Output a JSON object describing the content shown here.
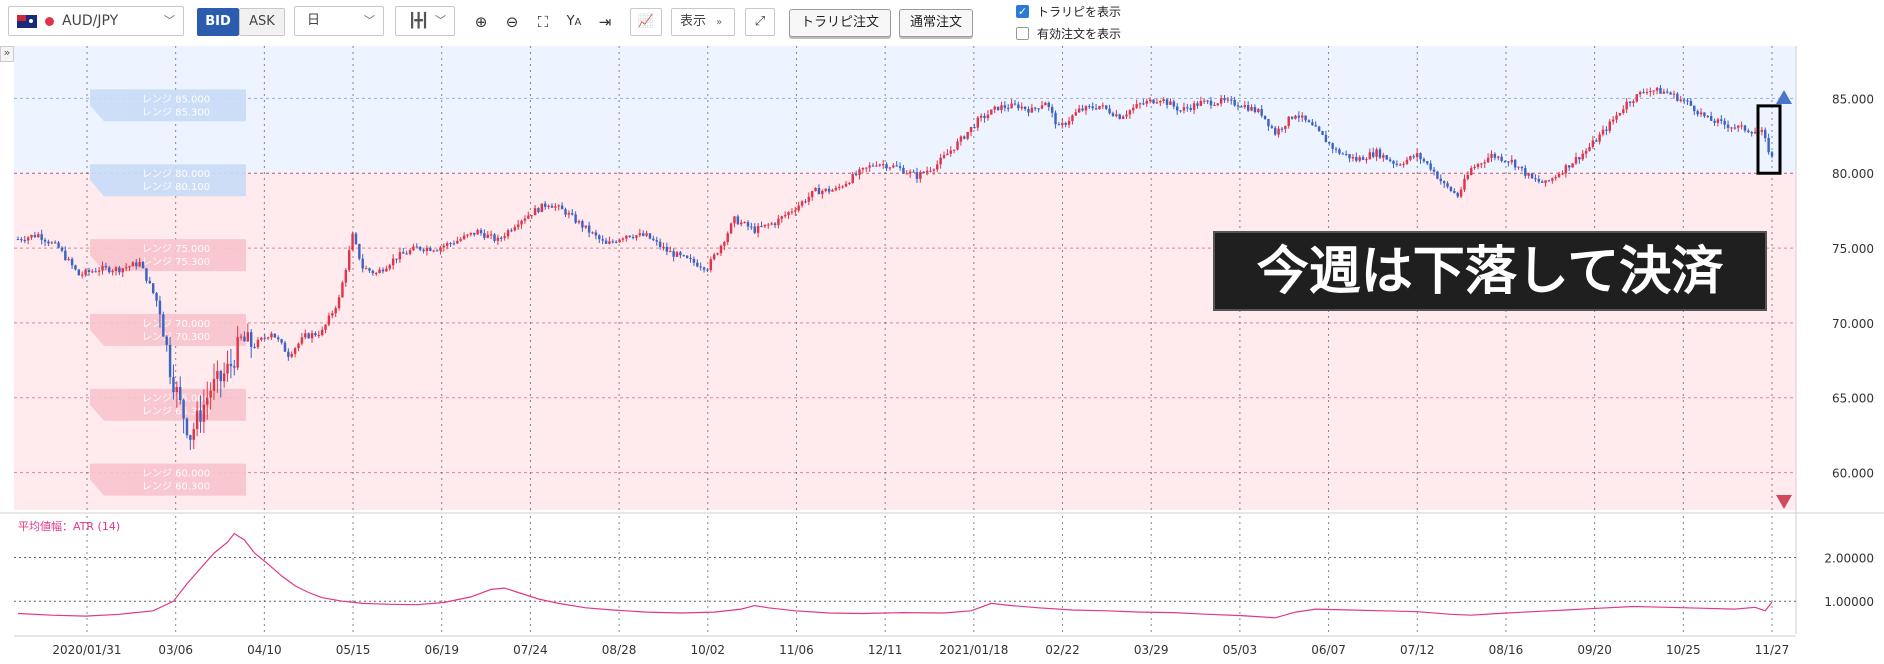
{
  "toolbar": {
    "symbol": "AUD/JPY",
    "flag_icon": "australia-flag-icon",
    "bid_label": "BID",
    "ask_label": "ASK",
    "timeframe": "日",
    "display_label": "表示",
    "trarepi_order_label": "トラリピ注文",
    "normal_order_label": "通常注文",
    "show_trarepi_label": "トラリピを表示",
    "show_trarepi_checked": true,
    "show_active_orders_label": "有効注文を表示",
    "show_active_orders_checked": false
  },
  "annotation": {
    "text": "今週は下落して決済"
  },
  "colors": {
    "up_candle": "#e0344a",
    "down_candle": "#3b63c4",
    "sell_zone": "#eef4ff",
    "buy_zone": "#ffeaee",
    "atr_line": "#e0388b",
    "bid_active": "#2b5cad"
  },
  "chart_data": [
    {
      "type": "candlestick",
      "symbol": "AUD/JPY",
      "timeframe": "日",
      "y_ticks": [
        "85.000",
        "80.000",
        "75.000",
        "70.000",
        "65.000",
        "60.000"
      ],
      "ylim": [
        57.5,
        88.5
      ],
      "x_ticks": [
        "2020/01/31",
        "03/06",
        "04/10",
        "05/15",
        "06/19",
        "07/24",
        "08/28",
        "10/02",
        "11/06",
        "12/11",
        "2021/01/18",
        "02/22",
        "03/29",
        "05/03",
        "06/07",
        "07/12",
        "08/16",
        "09/20",
        "10/25",
        "11/27"
      ],
      "range_orders": [
        {
          "side": "sell",
          "labels": [
            "レンジ 85.000",
            "レンジ 85.300"
          ]
        },
        {
          "side": "sell",
          "labels": [
            "レンジ 80.000",
            "レンジ 80.100"
          ]
        },
        {
          "side": "buy",
          "labels": [
            "レンジ 75.000",
            "レンジ 75.300"
          ]
        },
        {
          "side": "buy",
          "labels": [
            "レンジ 70.000",
            "レンジ 70.300"
          ]
        },
        {
          "side": "buy",
          "labels": [
            "レンジ 65.000",
            "レンジ 65.300"
          ]
        },
        {
          "side": "buy",
          "labels": [
            "レンジ 60.000",
            "レンジ 60.300"
          ]
        }
      ],
      "zone_boundary": 80.0,
      "close_path": [
        [
          0,
          75.6
        ],
        [
          6,
          75.9
        ],
        [
          12,
          75.0
        ],
        [
          18,
          73.2
        ],
        [
          24,
          73.6
        ],
        [
          30,
          73.6
        ],
        [
          36,
          74.0
        ],
        [
          42,
          71.0
        ],
        [
          45,
          67.0
        ],
        [
          48,
          64.5
        ],
        [
          51,
          62.5
        ],
        [
          54,
          64.0
        ],
        [
          57,
          65.6
        ],
        [
          60,
          66.2
        ],
        [
          63,
          67.2
        ],
        [
          66,
          68.8
        ],
        [
          70,
          68.5
        ],
        [
          75,
          69.4
        ],
        [
          80,
          67.9
        ],
        [
          85,
          69.1
        ],
        [
          90,
          69.4
        ],
        [
          95,
          71.6
        ],
        [
          99,
          75.8
        ],
        [
          102,
          73.7
        ],
        [
          106,
          73.3
        ],
        [
          112,
          74.4
        ],
        [
          118,
          75.0
        ],
        [
          124,
          75.0
        ],
        [
          130,
          75.5
        ],
        [
          136,
          76.1
        ],
        [
          142,
          75.5
        ],
        [
          148,
          76.8
        ],
        [
          153,
          77.5
        ],
        [
          157,
          78.0
        ],
        [
          162,
          77.4
        ],
        [
          168,
          76.3
        ],
        [
          174,
          75.2
        ],
        [
          180,
          75.9
        ],
        [
          186,
          75.8
        ],
        [
          192,
          74.8
        ],
        [
          198,
          74.2
        ],
        [
          204,
          73.7
        ],
        [
          208,
          75.2
        ],
        [
          212,
          76.9
        ],
        [
          218,
          76.2
        ],
        [
          224,
          76.7
        ],
        [
          230,
          77.7
        ],
        [
          236,
          78.8
        ],
        [
          242,
          78.9
        ],
        [
          248,
          79.9
        ],
        [
          254,
          80.7
        ],
        [
          260,
          80.4
        ],
        [
          266,
          79.8
        ],
        [
          272,
          80.6
        ],
        [
          278,
          82.0
        ],
        [
          284,
          83.5
        ],
        [
          290,
          84.4
        ],
        [
          296,
          84.5
        ],
        [
          300,
          84.2
        ],
        [
          304,
          84.8
        ],
        [
          308,
          83.0
        ],
        [
          314,
          84.2
        ],
        [
          320,
          84.5
        ],
        [
          326,
          83.8
        ],
        [
          332,
          84.6
        ],
        [
          338,
          85.0
        ],
        [
          344,
          84.2
        ],
        [
          350,
          84.7
        ],
        [
          356,
          84.8
        ],
        [
          362,
          84.6
        ],
        [
          368,
          84.0
        ],
        [
          372,
          82.7
        ],
        [
          378,
          84.0
        ],
        [
          384,
          82.9
        ],
        [
          390,
          81.5
        ],
        [
          396,
          80.9
        ],
        [
          402,
          81.4
        ],
        [
          408,
          80.6
        ],
        [
          414,
          81.2
        ],
        [
          418,
          80.4
        ],
        [
          422,
          79.2
        ],
        [
          426,
          78.5
        ],
        [
          430,
          80.3
        ],
        [
          436,
          81.2
        ],
        [
          442,
          80.8
        ],
        [
          448,
          79.6
        ],
        [
          452,
          79.3
        ],
        [
          458,
          80.4
        ],
        [
          464,
          81.5
        ],
        [
          470,
          83.0
        ],
        [
          476,
          84.7
        ],
        [
          482,
          85.6
        ],
        [
          488,
          85.4
        ],
        [
          494,
          84.7
        ],
        [
          500,
          83.6
        ],
        [
          506,
          83.2
        ],
        [
          512,
          82.9
        ],
        [
          516,
          82.7
        ],
        [
          519,
          81.0
        ]
      ],
      "n_bars": 520
    },
    {
      "type": "line",
      "title": "平均値幅：ATR (14)",
      "y_ticks": [
        "2.00000",
        "1.00000"
      ],
      "ylim": [
        0.25,
        2.95
      ],
      "series": [
        {
          "points": [
            [
              0,
              0.72
            ],
            [
              10,
              0.68
            ],
            [
              20,
              0.66
            ],
            [
              30,
              0.7
            ],
            [
              40,
              0.78
            ],
            [
              46,
              1.0
            ],
            [
              50,
              1.4
            ],
            [
              54,
              1.75
            ],
            [
              58,
              2.1
            ],
            [
              62,
              2.35
            ],
            [
              64,
              2.55
            ],
            [
              67,
              2.4
            ],
            [
              70,
              2.1
            ],
            [
              74,
              1.85
            ],
            [
              78,
              1.58
            ],
            [
              82,
              1.35
            ],
            [
              86,
              1.2
            ],
            [
              90,
              1.08
            ],
            [
              96,
              1.0
            ],
            [
              102,
              0.95
            ],
            [
              110,
              0.93
            ],
            [
              118,
              0.92
            ],
            [
              126,
              0.97
            ],
            [
              134,
              1.1
            ],
            [
              140,
              1.27
            ],
            [
              144,
              1.3
            ],
            [
              148,
              1.2
            ],
            [
              154,
              1.05
            ],
            [
              160,
              0.95
            ],
            [
              168,
              0.85
            ],
            [
              176,
              0.8
            ],
            [
              186,
              0.75
            ],
            [
              196,
              0.73
            ],
            [
              206,
              0.75
            ],
            [
              214,
              0.82
            ],
            [
              218,
              0.9
            ],
            [
              222,
              0.85
            ],
            [
              230,
              0.78
            ],
            [
              240,
              0.73
            ],
            [
              250,
              0.72
            ],
            [
              262,
              0.74
            ],
            [
              274,
              0.73
            ],
            [
              282,
              0.78
            ],
            [
              288,
              0.95
            ],
            [
              294,
              0.9
            ],
            [
              302,
              0.85
            ],
            [
              312,
              0.8
            ],
            [
              322,
              0.78
            ],
            [
              332,
              0.75
            ],
            [
              342,
              0.74
            ],
            [
              352,
              0.7
            ],
            [
              362,
              0.67
            ],
            [
              372,
              0.62
            ],
            [
              378,
              0.75
            ],
            [
              384,
              0.82
            ],
            [
              394,
              0.8
            ],
            [
              404,
              0.78
            ],
            [
              414,
              0.76
            ],
            [
              424,
              0.7
            ],
            [
              430,
              0.68
            ],
            [
              438,
              0.72
            ],
            [
              448,
              0.76
            ],
            [
              458,
              0.8
            ],
            [
              468,
              0.84
            ],
            [
              478,
              0.88
            ],
            [
              488,
              0.86
            ],
            [
              498,
              0.84
            ],
            [
              508,
              0.82
            ],
            [
              514,
              0.86
            ],
            [
              517,
              0.78
            ],
            [
              519,
              0.98
            ]
          ]
        }
      ]
    }
  ]
}
